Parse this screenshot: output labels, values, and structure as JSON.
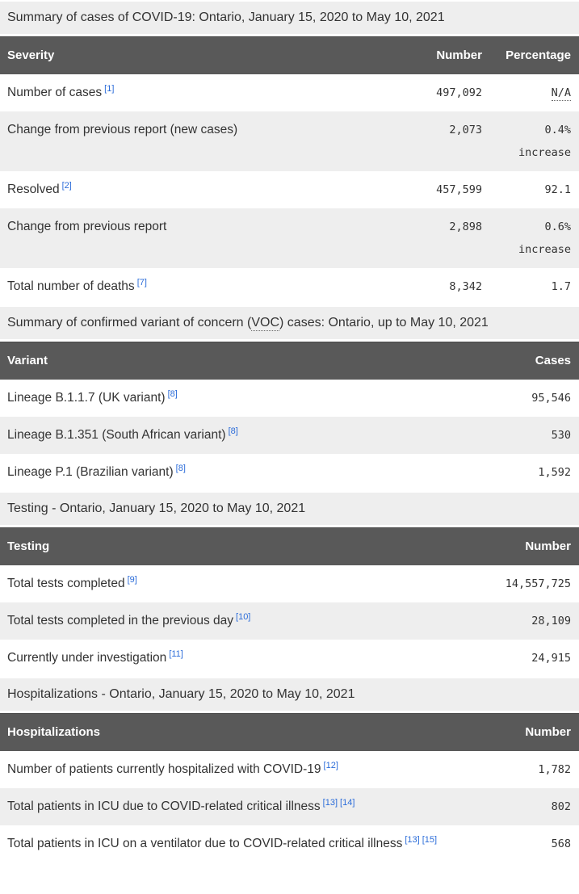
{
  "colors": {
    "header_bg": "#595959",
    "header_text": "#ffffff",
    "alt_row_bg": "#eeeeee",
    "caption_bg": "#eeeeee",
    "body_text": "#333333",
    "footnote_link": "#2b6cd9"
  },
  "tables": [
    {
      "caption": {
        "before": "Summary of cases of COVID-19: Ontario, January 15, 2020 to May 10, 2021"
      },
      "headers": {
        "col1": "Severity",
        "col2": "Number",
        "col3": "Percentage"
      },
      "rows": [
        {
          "label": "Number of cases",
          "fn1": "[1]",
          "number": "497,092",
          "pct": "N/A"
        },
        {
          "label": "Change from previous report (new cases)",
          "number": "2,073",
          "pct": "0.4%",
          "pct_note": "increase"
        },
        {
          "label": "Resolved",
          "fn1": "[2]",
          "number": "457,599",
          "pct": "92.1"
        },
        {
          "label": "Change from previous report",
          "number": "2,898",
          "pct": "0.6%",
          "pct_note": "increase"
        },
        {
          "label": "Total number of deaths",
          "fn1": "[7]",
          "number": "8,342",
          "pct": "1.7"
        }
      ]
    },
    {
      "caption": {
        "before": "Summary of confirmed variant of concern (",
        "abbr": "VOC",
        "after": ") cases: Ontario, up to May 10, 2021"
      },
      "headers": {
        "col1": "Variant",
        "col2": "Cases"
      },
      "rows": [
        {
          "label": "Lineage B.1.1.7 (UK variant)",
          "fn1": "[8]",
          "number": "95,546"
        },
        {
          "label": "Lineage B.1.351 (South African variant)",
          "fn1": "[8]",
          "number": "530"
        },
        {
          "label": "Lineage P.1 (Brazilian variant)",
          "fn1": "[8]",
          "number": "1,592"
        }
      ]
    },
    {
      "caption": {
        "before": "Testing - Ontario, January 15, 2020 to May 10, 2021"
      },
      "headers": {
        "col1": "Testing",
        "col2": "Number"
      },
      "rows": [
        {
          "label": "Total tests completed",
          "fn1": "[9]",
          "number": "14,557,725"
        },
        {
          "label": "Total tests completed in the previous day",
          "fn1": "[10]",
          "number": "28,109"
        },
        {
          "label": "Currently under investigation",
          "fn1": "[11]",
          "number": "24,915"
        }
      ]
    },
    {
      "caption": {
        "before": "Hospitalizations - Ontario, January 15, 2020 to May 10, 2021"
      },
      "headers": {
        "col1": "Hospitalizations",
        "col2": "Number"
      },
      "rows": [
        {
          "label": "Number of patients currently hospitalized with COVID-19",
          "fn1": "[12]",
          "number": "1,782"
        },
        {
          "label": "Total patients in ICU due to COVID-related critical illness",
          "fn1": "[13]",
          "fn2": "[14]",
          "number": "802"
        },
        {
          "label": "Total patients in ICU on a ventilator due to COVID-related critical illness",
          "fn1": "[13]",
          "fn2": "[15]",
          "number": "568"
        }
      ]
    }
  ]
}
